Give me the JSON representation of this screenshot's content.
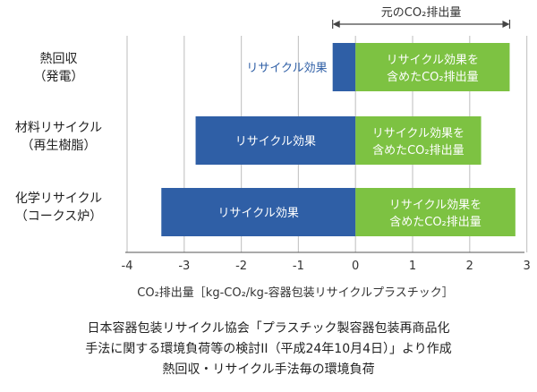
{
  "chart_data": {
    "type": "bar",
    "orientation": "horizontal",
    "stacked": true,
    "top_annotation": "元のCO₂排出量",
    "xlabel": "CO₂排出量［kg-CO₂/kg-容器包装リサイクルプラスチック］",
    "xlim": [
      -4,
      3
    ],
    "xticks": [
      -4,
      -3,
      -2,
      -1,
      0,
      1,
      2,
      3
    ],
    "grid": "vertical",
    "categories": [
      {
        "line1": "熱回収",
        "line2": "（発電）"
      },
      {
        "line1": "材料リサイクル",
        "line2": "（再生樹脂）"
      },
      {
        "line1": "化学リサイクル",
        "line2": "（コークス炉）"
      }
    ],
    "series": [
      {
        "name": "リサイクル効果",
        "color": "#2f5fa6",
        "values": [
          -0.4,
          -2.8,
          -3.4
        ]
      },
      {
        "name": "リサイクル効果を含めたCO₂排出量",
        "color": "#7dc242",
        "values": [
          2.7,
          2.2,
          2.8
        ]
      }
    ],
    "bar_labels": [
      {
        "negative": "リサイクル効果",
        "positive_line1": "リサイクル効果を",
        "positive_line2": "含めたCO₂排出量"
      },
      {
        "negative": "リサイクル効果",
        "positive_line1": "リサイクル効果を",
        "positive_line2": "含めたCO₂排出量"
      },
      {
        "negative": "リサイクル効果",
        "positive_line1": "リサイクル効果を",
        "positive_line2": "含めたCO₂排出量"
      }
    ]
  },
  "caption": {
    "line1": "日本容器包装リサイクル協会「プラスチック製容器包装再商品化",
    "line2": "手法に関する環境負荷等の検討II（平成24年10月4日）」より作成",
    "line3": "熱回収・リサイクル手法毎の環境負荷"
  },
  "colors": {
    "negative_bar": "#2f5fa6",
    "positive_bar": "#7dc242",
    "grid": "#c8c8c8",
    "axis": "#555555"
  }
}
